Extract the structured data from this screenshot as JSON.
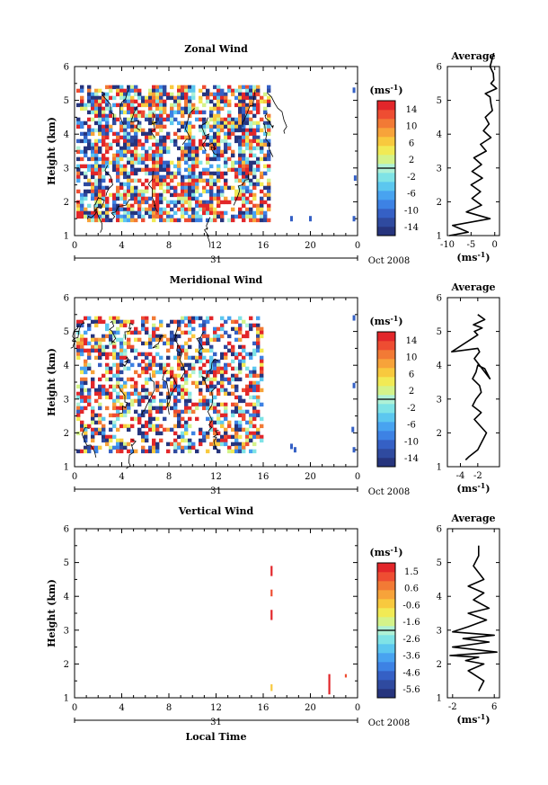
{
  "figure": {
    "bottom_xlabel": "Local Time"
  },
  "chart_data": [
    {
      "type": "heatmap",
      "title": "Zonal Wind",
      "ylabel": "Height (km)",
      "ylim": [
        1,
        6
      ],
      "yticks": [
        "1",
        "2",
        "3",
        "4",
        "5",
        "6"
      ],
      "xlim": [
        0,
        24
      ],
      "xticks": [
        "0",
        "4",
        "8",
        "12",
        "16",
        "20",
        "0"
      ],
      "date_axis": {
        "day_label": "31",
        "month_label": "Oct 2008"
      },
      "colorbar": {
        "unit": "(ms",
        "unit_sup": "-1",
        "unit_close": ")",
        "ticks": [
          "14",
          "10",
          "6",
          "2",
          "-2",
          "-6",
          "-10",
          "-14"
        ],
        "range": [
          -16,
          16
        ],
        "colors": [
          "#26347d",
          "#2f4a9f",
          "#3560c5",
          "#3d82e4",
          "#48a3f0",
          "#5cc7ef",
          "#7fe3e6",
          "#aef1d6",
          "#d4f38a",
          "#f1ea55",
          "#f8c93e",
          "#f7a33a",
          "#f27a35",
          "#ee4d32",
          "#e2262a"
        ]
      },
      "data_presence_x": [
        0,
        16.4
      ],
      "isolated_points": [
        {
          "x": 18.4,
          "y": 1.5
        },
        {
          "x": 20.0,
          "y": 1.5
        },
        {
          "x": 23.7,
          "y": 1.5
        },
        {
          "x": 23.8,
          "y": 2.7
        },
        {
          "x": 23.7,
          "y": 5.3
        }
      ],
      "profile": {
        "title": "Average",
        "xlabel": "(ms",
        "xlabel_sup": "-1",
        "xlabel_close": ")",
        "xlim": [
          -10,
          1
        ],
        "xticks": [
          {
            "v": -10,
            "t": "-10"
          },
          {
            "v": -5,
            "t": "-5"
          },
          {
            "v": 0,
            "t": "0"
          }
        ],
        "ylim": [
          1,
          6
        ],
        "yticks": [
          "1",
          "2",
          "3",
          "4",
          "5",
          "6"
        ],
        "x": [
          -9.6,
          -5.6,
          -8.9,
          -1.0,
          -6.0,
          -2.8,
          -4.8,
          -3.0,
          -5.0,
          -2.6,
          -4.8,
          -2.8,
          -4.4,
          -1.8,
          -3.0,
          -0.8,
          -2.4,
          -1.2,
          -2.0,
          -0.5,
          -0.8,
          -1.0,
          -2.0,
          0.4,
          -0.8,
          -0.2,
          -0.3,
          -1.0,
          -0.2
        ],
        "y": [
          1.0,
          1.1,
          1.3,
          1.5,
          1.7,
          1.9,
          2.1,
          2.3,
          2.5,
          2.7,
          2.9,
          3.1,
          3.3,
          3.5,
          3.7,
          3.9,
          4.1,
          4.3,
          4.5,
          4.7,
          4.9,
          5.1,
          5.2,
          5.35,
          5.5,
          5.6,
          5.8,
          6.0,
          6.4
        ]
      }
    },
    {
      "type": "heatmap",
      "title": "Meridional Wind",
      "ylabel": "Height (km)",
      "ylim": [
        1,
        6
      ],
      "yticks": [
        "1",
        "2",
        "3",
        "4",
        "5",
        "6"
      ],
      "xlim": [
        0,
        24
      ],
      "xticks": [
        "0",
        "4",
        "8",
        "12",
        "16",
        "20",
        "0"
      ],
      "date_axis": {
        "day_label": "31",
        "month_label": "Oct 2008"
      },
      "colorbar": {
        "unit": "(ms",
        "unit_sup": "-1",
        "unit_close": ")",
        "ticks": [
          "14",
          "10",
          "6",
          "2",
          "-2",
          "-6",
          "-10",
          "-14"
        ],
        "range": [
          -16,
          16
        ],
        "colors": [
          "#26347d",
          "#2f4a9f",
          "#3560c5",
          "#3d82e4",
          "#48a3f0",
          "#5cc7ef",
          "#7fe3e6",
          "#aef1d6",
          "#d4f38a",
          "#f1ea55",
          "#f8c93e",
          "#f7a33a",
          "#f27a35",
          "#ee4d32",
          "#e2262a"
        ]
      },
      "data_presence_x": [
        0,
        16.0
      ],
      "isolated_points": [
        {
          "x": 18.4,
          "y": 1.6
        },
        {
          "x": 18.7,
          "y": 1.5
        },
        {
          "x": 23.7,
          "y": 1.5
        },
        {
          "x": 23.6,
          "y": 2.1
        },
        {
          "x": 23.7,
          "y": 3.4
        },
        {
          "x": 23.7,
          "y": 5.4
        }
      ],
      "profile": {
        "title": "Average",
        "xlabel": "(ms",
        "xlabel_sup": "-1",
        "xlabel_close": ")",
        "xlim": [
          -5.5,
          0.5
        ],
        "xticks": [
          {
            "v": -4,
            "t": "-4"
          },
          {
            "v": -2,
            "t": "-2"
          }
        ],
        "ylim": [
          1,
          6
        ],
        "yticks": [
          "1",
          "2",
          "3",
          "4",
          "5",
          "6"
        ],
        "x": [
          -3.4,
          -3.0,
          -2.0,
          -1.0,
          -2.4,
          -1.6,
          -2.6,
          -2.2,
          -1.6,
          -1.8,
          -2.6,
          -2.2,
          -2.0,
          -1.2,
          -0.6,
          -2.4,
          -1.8,
          -2.0,
          -5.0,
          -2.0,
          -2.4,
          -1.5,
          -2.5,
          -1.2,
          -2.0
        ],
        "y": [
          1.2,
          1.3,
          1.5,
          2.0,
          2.4,
          2.6,
          2.8,
          3.0,
          3.2,
          3.4,
          3.6,
          3.8,
          4.0,
          3.9,
          3.6,
          4.2,
          4.4,
          4.5,
          4.4,
          4.9,
          5.0,
          5.1,
          5.2,
          5.35,
          5.5
        ]
      }
    },
    {
      "type": "heatmap",
      "title": "Vertical Wind",
      "ylabel": "Height (km)",
      "ylim": [
        1,
        6
      ],
      "yticks": [
        "1",
        "2",
        "3",
        "4",
        "5",
        "6"
      ],
      "xlim": [
        0,
        24
      ],
      "xticks": [
        "0",
        "4",
        "8",
        "12",
        "16",
        "20",
        "0"
      ],
      "date_axis": {
        "day_label": "31",
        "month_label": "Oct 2008"
      },
      "colorbar": {
        "unit": "(ms",
        "unit_sup": "-1",
        "unit_close": ")",
        "ticks": [
          "1.5",
          "0.6",
          "-0.6",
          "-1.6",
          "-2.6",
          "-3.6",
          "-4.6",
          "-5.6"
        ],
        "range": [
          -6.2,
          2.0
        ],
        "colors": [
          "#26347d",
          "#2f4a9f",
          "#3560c5",
          "#3d82e4",
          "#48a3f0",
          "#5cc7ef",
          "#7fe3e6",
          "#aef1d6",
          "#d4f38a",
          "#f1ea55",
          "#f8c93e",
          "#f7a33a",
          "#f27a35",
          "#ee4d32",
          "#e2262a"
        ]
      },
      "data_presence_x": null,
      "streaks": [
        {
          "x": 16.7,
          "y0": 4.6,
          "y1": 4.9,
          "value": 1.5
        },
        {
          "x": 16.7,
          "y0": 4.0,
          "y1": 4.2,
          "value": 1.0
        },
        {
          "x": 16.7,
          "y0": 3.3,
          "y1": 3.6,
          "value": 1.5
        },
        {
          "x": 16.7,
          "y0": 1.2,
          "y1": 1.4,
          "value": -0.3
        },
        {
          "x": 21.6,
          "y0": 1.1,
          "y1": 1.7,
          "value": 1.6
        },
        {
          "x": 23.0,
          "y0": 1.6,
          "y1": 1.7,
          "value": 1.2
        }
      ],
      "profile": {
        "title": "Average",
        "xlabel": "(ms",
        "xlabel_sup": "-1",
        "xlabel_close": ")",
        "xlim": [
          -3,
          7
        ],
        "xticks": [
          {
            "v": -2,
            "t": "-2"
          },
          {
            "v": 6,
            "t": "6"
          }
        ],
        "ylim": [
          1,
          6
        ],
        "yticks": [
          "1",
          "2",
          "3",
          "4",
          "5",
          "6"
        ],
        "x": [
          3.0,
          4.0,
          1.0,
          4.0,
          0.5,
          3.0,
          -2.5,
          6.5,
          -2.0,
          5.0,
          0.0,
          6.0,
          -2.0,
          1.0,
          4.5,
          1.0,
          5.0,
          2.0,
          4.0,
          1.0,
          4.0,
          3.0,
          2.0,
          3.0,
          3.0
        ],
        "y": [
          1.2,
          1.5,
          1.8,
          2.0,
          2.1,
          2.2,
          2.25,
          2.35,
          2.5,
          2.65,
          2.75,
          2.85,
          2.95,
          3.1,
          3.3,
          3.5,
          3.65,
          3.9,
          4.1,
          4.3,
          4.5,
          4.7,
          4.9,
          5.2,
          5.5
        ]
      }
    }
  ]
}
